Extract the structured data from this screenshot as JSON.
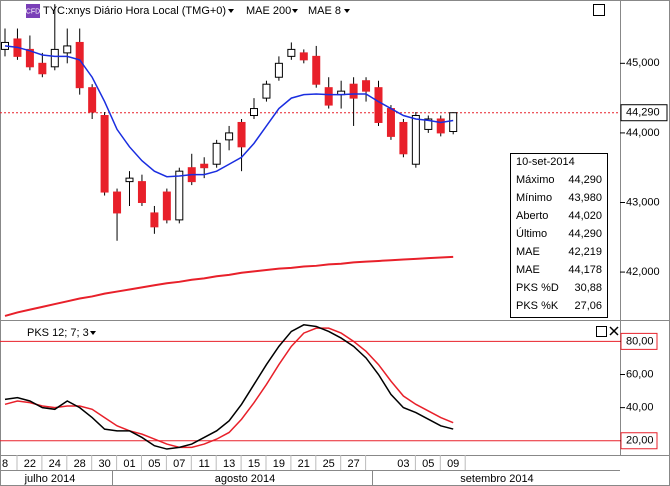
{
  "chart_data": [
    {
      "type": "candlestick",
      "title": "TYC:xnys Diário Hora Local (TMG+0)",
      "badge": "CFD",
      "categories": [
        "8",
        null,
        "22",
        null,
        "24",
        null,
        "28",
        null,
        "30",
        null,
        "01",
        null,
        "05",
        null,
        "07",
        null,
        "11",
        null,
        "13",
        null,
        "15",
        null,
        "19",
        null,
        "21",
        null,
        "25",
        null,
        "27",
        null,
        null,
        null,
        "03",
        null,
        "05",
        null,
        "09"
      ],
      "month_labels": [
        "julho 2014",
        "agosto 2014",
        "setembro 2014"
      ],
      "open": [
        45200,
        45350,
        45200,
        45000,
        44950,
        45150,
        45300,
        44650,
        44250,
        43150,
        43300,
        43300,
        42850,
        43150,
        42750,
        43500,
        43550,
        43550,
        43900,
        44150,
        44250,
        44500,
        44800,
        45100,
        45150,
        45100,
        44650,
        44550,
        44700,
        44750,
        44650,
        44350,
        44150,
        43550,
        44050,
        44200,
        44020
      ],
      "high": [
        45500,
        45500,
        45400,
        45150,
        45850,
        45500,
        45500,
        44700,
        44300,
        43200,
        43450,
        43400,
        42950,
        43200,
        43500,
        43700,
        43650,
        43900,
        44100,
        44200,
        44500,
        44750,
        45100,
        45300,
        45200,
        45250,
        44800,
        44750,
        44800,
        44800,
        44750,
        44400,
        44200,
        44300,
        44250,
        44250,
        44290
      ],
      "low": [
        45100,
        45050,
        44900,
        44800,
        44900,
        45000,
        44550,
        44200,
        43100,
        42450,
        42950,
        42950,
        42550,
        42700,
        42700,
        43250,
        43350,
        43500,
        43750,
        43450,
        44200,
        44450,
        44750,
        45050,
        45000,
        44650,
        44350,
        44350,
        44100,
        44450,
        44100,
        43900,
        43650,
        43500,
        44000,
        43950,
        43980
      ],
      "close": [
        45300,
        45100,
        44950,
        44850,
        45200,
        45250,
        44650,
        44300,
        43150,
        42850,
        43350,
        43000,
        42650,
        42750,
        43450,
        43300,
        43500,
        43850,
        44000,
        43800,
        44350,
        44700,
        45000,
        45200,
        45050,
        44700,
        44400,
        44600,
        44500,
        44600,
        44150,
        43950,
        43700,
        44250,
        44200,
        44000,
        44290
      ],
      "up_color": "#ffffff",
      "down_color": "#e8202a",
      "series": [
        {
          "name": "MAE 200",
          "color": "#e8202a",
          "values": [
            41370,
            41420,
            41460,
            41500,
            41540,
            41580,
            41620,
            41650,
            41690,
            41720,
            41750,
            41780,
            41810,
            41840,
            41860,
            41890,
            41910,
            41940,
            41960,
            41990,
            42010,
            42030,
            42050,
            42060,
            42080,
            42090,
            42110,
            42120,
            42140,
            42150,
            42160,
            42170,
            42180,
            42190,
            42200,
            42210,
            42219
          ]
        },
        {
          "name": "MAE 8",
          "color": "#1a2ee0",
          "values": [
            45250,
            45230,
            45180,
            45120,
            45100,
            45100,
            45050,
            44800,
            44450,
            44050,
            43800,
            43600,
            43450,
            43370,
            43380,
            43400,
            43400,
            43450,
            43550,
            43650,
            43850,
            44100,
            44350,
            44500,
            44550,
            44560,
            44550,
            44550,
            44560,
            44560,
            44450,
            44350,
            44250,
            44200,
            44180,
            44150,
            44178
          ]
        }
      ],
      "last_price": {
        "value": 44290,
        "label": "44,290"
      },
      "ylim": [
        41340,
        45910
      ],
      "yticks": [
        {
          "value": 45000,
          "label": "45,000"
        },
        {
          "value": 44000,
          "label": "44,000"
        },
        {
          "value": 43000,
          "label": "43,000"
        },
        {
          "value": 42000,
          "label": "42,000"
        }
      ],
      "info": {
        "date": "10-set-2014",
        "rows": [
          [
            "Máximo",
            "44,290"
          ],
          [
            "Mínimo",
            "43,980"
          ],
          [
            "Aberto",
            "44,020"
          ],
          [
            "Último",
            "44,290"
          ],
          [
            "MAE",
            "42,219"
          ],
          [
            "MAE",
            "44,178"
          ],
          [
            "PKS %D",
            "30,88"
          ],
          [
            "PKS %K",
            "27,06"
          ]
        ],
        "row_colors": [
          "#000000",
          "#000000",
          "#000000",
          "#000000",
          "#e8202a",
          "#1a2ee0",
          "#e8202a",
          "#000000"
        ]
      }
    },
    {
      "type": "line",
      "title": "PKS 12; 7; 3",
      "series": [
        {
          "name": "PKS %K",
          "color": "#000000",
          "values": [
            45,
            46,
            44,
            40,
            39,
            44,
            40,
            34,
            27,
            26,
            26,
            22,
            17,
            15,
            16,
            18,
            22,
            26,
            32,
            42,
            54,
            66,
            77,
            86,
            90,
            89,
            86,
            82,
            77,
            70,
            60,
            48,
            40,
            37,
            33,
            29,
            27.06
          ]
        },
        {
          "name": "PKS %D",
          "color": "#e8202a",
          "values": [
            42,
            44,
            43,
            41,
            40,
            41,
            41,
            39,
            34,
            29,
            26,
            24,
            21,
            18,
            16,
            16,
            18,
            21,
            25,
            33,
            43,
            54,
            66,
            77,
            85,
            88,
            88,
            85,
            80,
            74,
            66,
            56,
            47,
            42,
            38,
            34,
            30.88
          ]
        }
      ],
      "levels": [
        {
          "value": 80,
          "label": "80,00"
        },
        {
          "value": 20,
          "label": "20,00"
        }
      ],
      "level_color": "#e8202a",
      "ylim": [
        11.4,
        91.7
      ],
      "yticks": [
        {
          "value": 80,
          "label": "80,00"
        },
        {
          "value": 60,
          "label": "60,00"
        },
        {
          "value": 40,
          "label": "40,00"
        },
        {
          "value": 20,
          "label": "20,00"
        }
      ]
    }
  ]
}
